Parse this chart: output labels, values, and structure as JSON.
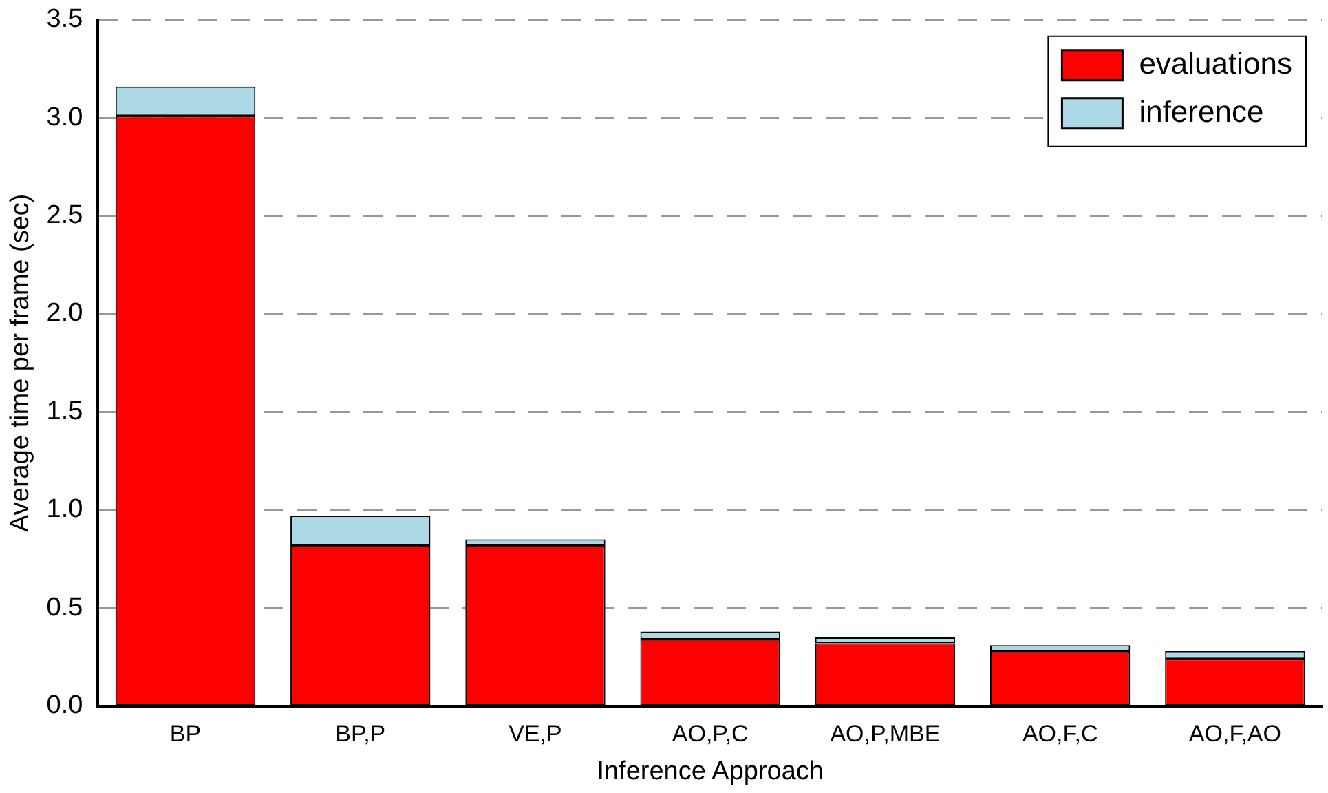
{
  "chart_data": {
    "type": "bar",
    "stacked": true,
    "xlabel": "Inference Approach",
    "ylabel": "Average time per frame (sec)",
    "categories": [
      "BP",
      "BP,P",
      "VE,P",
      "AO,P,C",
      "AO,P,MBE",
      "AO,F,C",
      "AO,F,AO"
    ],
    "series": [
      {
        "name": "evaluations",
        "color": "#ff0000",
        "values": [
          3.01,
          0.82,
          0.82,
          0.34,
          0.32,
          0.28,
          0.24
        ]
      },
      {
        "name": "inference",
        "color": "#add8e6",
        "values": [
          0.15,
          0.15,
          0.03,
          0.04,
          0.03,
          0.03,
          0.04
        ]
      }
    ],
    "ylim": [
      0,
      3.5
    ],
    "yticks": [
      {
        "value": 0,
        "label": "0.0"
      },
      {
        "value": 0.5,
        "label": "0.5"
      },
      {
        "value": 1,
        "label": "1.0"
      },
      {
        "value": 1.5,
        "label": "1.5"
      },
      {
        "value": 2,
        "label": "2.0"
      },
      {
        "value": 2.5,
        "label": "2.5"
      },
      {
        "value": 3,
        "label": "3.0"
      },
      {
        "value": 3.5,
        "label": "3.5"
      }
    ],
    "grid": "y",
    "legend": "top right"
  }
}
